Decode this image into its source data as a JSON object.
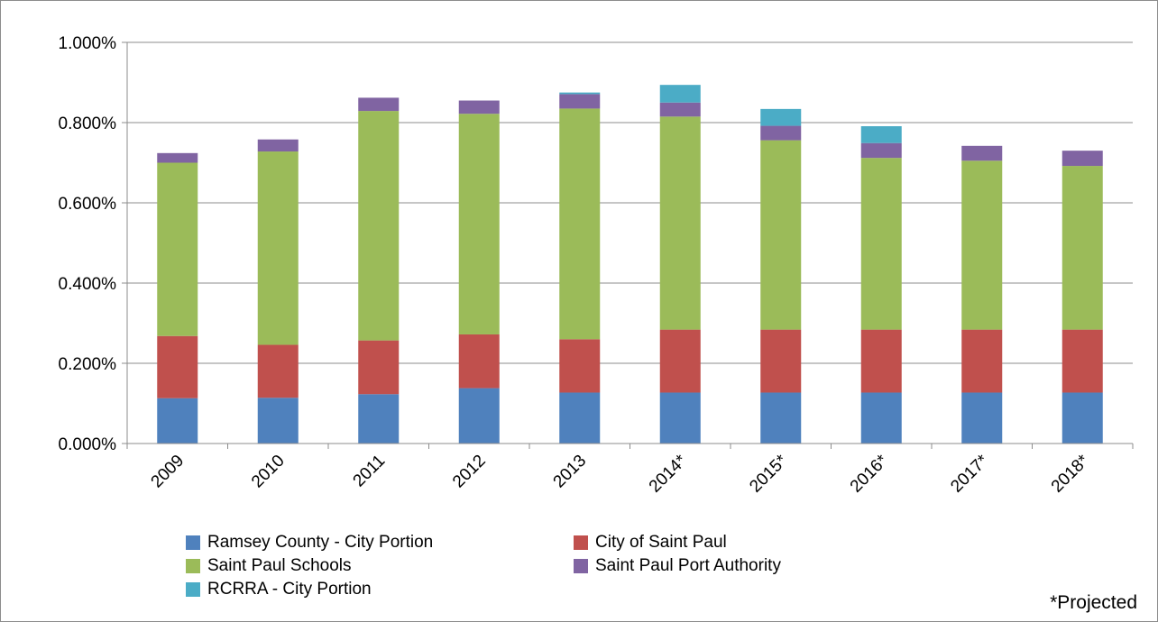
{
  "chart_data": {
    "type": "bar",
    "stacked": true,
    "title": "",
    "xlabel": "",
    "ylabel": "",
    "ylim": [
      0,
      1.0
    ],
    "y_ticks": [
      "0.000%",
      "0.200%",
      "0.400%",
      "0.600%",
      "0.800%",
      "1.000%"
    ],
    "y_tick_values": [
      0,
      0.2,
      0.4,
      0.6,
      0.8,
      1.0
    ],
    "grid": true,
    "legend_position": "bottom",
    "categories": [
      "2009",
      "2010",
      "2011",
      "2012",
      "2013",
      "2014*",
      "2015*",
      "2016*",
      "2017*",
      "2018*"
    ],
    "series": [
      {
        "name": "Ramsey County - City Portion",
        "color": "#4F81BD",
        "values": [
          0.113,
          0.114,
          0.123,
          0.138,
          0.127,
          0.127,
          0.127,
          0.127,
          0.127,
          0.127
        ]
      },
      {
        "name": "City of Saint Paul",
        "color": "#C0504D",
        "values": [
          0.155,
          0.132,
          0.134,
          0.134,
          0.133,
          0.157,
          0.157,
          0.157,
          0.157,
          0.157
        ]
      },
      {
        "name": "Saint Paul Schools",
        "color": "#9BBB59",
        "values": [
          0.432,
          0.482,
          0.572,
          0.55,
          0.575,
          0.531,
          0.472,
          0.428,
          0.421,
          0.408
        ]
      },
      {
        "name": "Saint Paul Port Authority",
        "color": "#8064A2",
        "values": [
          0.024,
          0.03,
          0.033,
          0.033,
          0.036,
          0.035,
          0.036,
          0.037,
          0.037,
          0.038
        ]
      },
      {
        "name": "RCRRA - City Portion",
        "color": "#4BACC6",
        "values": [
          0,
          0,
          0,
          0,
          0.004,
          0.044,
          0.042,
          0.042,
          0,
          0
        ]
      }
    ]
  },
  "footnote": "*Projected"
}
